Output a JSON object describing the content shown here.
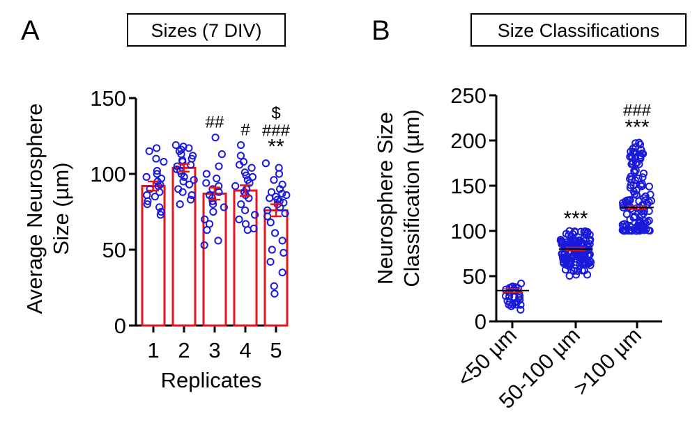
{
  "chart_data": [
    {
      "panel": "A",
      "type": "bar",
      "title": "Sizes (7 DIV)",
      "xlabel": "Replicates",
      "ylabel": "Average Neurosphere Size (µm)",
      "ylabel_lines": [
        "Average Neurosphere",
        "Size (µm)"
      ],
      "ylim": [
        0,
        150
      ],
      "yticks": [
        0,
        50,
        100,
        150
      ],
      "grid": false,
      "colors": {
        "bar_edge": "#e8141b",
        "points": "#1a1adc",
        "error_bar": "#e8141b"
      },
      "categories": [
        "1",
        "2",
        "3",
        "4",
        "5"
      ],
      "values": [
        92,
        104,
        87,
        89,
        76
      ],
      "sem": [
        3,
        2.5,
        4,
        3.5,
        4
      ],
      "significance": [
        "",
        "",
        "##",
        "#",
        "**"
      ],
      "significance_lines": [
        [],
        [],
        [
          "##"
        ],
        [
          "#"
        ],
        [
          "$",
          "###",
          "**"
        ]
      ],
      "points": [
        [
          117,
          115,
          110,
          108,
          102,
          100,
          98,
          97,
          95,
          93,
          92,
          90,
          88,
          86,
          85,
          82,
          80,
          78,
          75,
          73
        ],
        [
          119,
          118,
          117,
          116,
          115,
          113,
          112,
          110,
          109,
          108,
          106,
          105,
          103,
          102,
          100,
          98,
          96,
          95,
          93,
          90,
          88,
          86,
          83,
          80
        ],
        [
          124,
          113,
          105,
          100,
          97,
          94,
          92,
          90,
          88,
          86,
          84,
          82,
          80,
          78,
          75,
          70,
          67,
          63,
          56,
          53
        ],
        [
          119,
          112,
          108,
          106,
          104,
          101,
          99,
          98,
          96,
          94,
          92,
          90,
          88,
          86,
          84,
          80,
          76,
          73,
          70,
          67,
          64,
          63
        ],
        [
          107,
          104,
          100,
          96,
          93,
          90,
          88,
          87,
          86,
          85,
          84,
          83,
          82,
          81,
          80,
          78,
          76,
          74,
          72,
          68,
          61,
          56,
          50,
          48,
          42,
          35,
          26,
          21
        ]
      ]
    },
    {
      "panel": "B",
      "type": "scatter",
      "title": "Size Classifications",
      "xlabel": "",
      "ylabel": "Neurosphere Size Classification (µm)",
      "ylabel_lines": [
        "Neurosphere Size",
        "Classification (µm)"
      ],
      "ylim": [
        0,
        250
      ],
      "yticks": [
        0,
        50,
        100,
        150,
        200,
        250
      ],
      "grid": false,
      "colors": {
        "points": "#1a1adc",
        "mean_line": "#000000",
        "sem_line": "#e8141b"
      },
      "categories": [
        "<50 µm",
        "50-100 µm",
        ">100 µm"
      ],
      "means": [
        34,
        80,
        126
      ],
      "significance_lines": [
        [],
        [
          "***"
        ],
        [
          "###",
          "***"
        ]
      ],
      "ranges": [
        [
          8,
          49
        ],
        [
          50,
          100
        ],
        [
          100,
          201
        ]
      ],
      "counts": [
        26,
        140,
        120
      ]
    }
  ],
  "labels": {
    "panel_a_letter": "A",
    "panel_b_letter": "B"
  }
}
